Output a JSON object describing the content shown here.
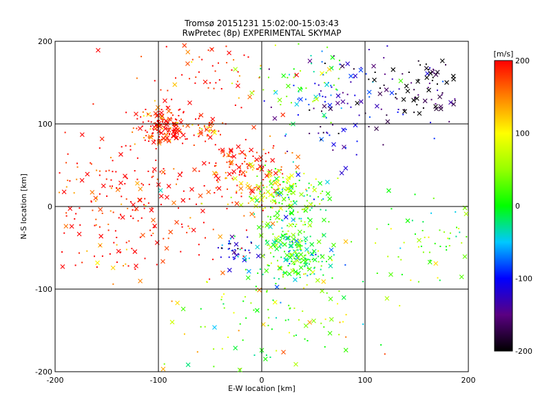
{
  "chart_data": {
    "type": "scatter",
    "title": "Tromsø 20151231 15:02:00-15:03:43",
    "subtitle": "RwPretec (8p) EXPERIMENTAL SKYMAP",
    "xlabel": "E-W location [km]",
    "ylabel": "N-S location [km]",
    "xlim": [
      -200,
      200
    ],
    "ylim": [
      -200,
      200
    ],
    "xticks": [
      "-200",
      "-100",
      "0",
      "100",
      "200"
    ],
    "yticks": [
      "-200",
      "-100",
      "0",
      "100",
      "200"
    ],
    "grid": "at ±100 and 0",
    "colorbar": {
      "label": "[m/s]",
      "ticks": [
        "200",
        "100",
        "0",
        "-100",
        "-200"
      ],
      "range": [
        -200,
        200
      ],
      "colormap": "black-purple-blue-cyan-green-yellow-orange-red"
    },
    "markers": [
      "x (large)",
      "dot/plus (small)"
    ],
    "clusters": [
      {
        "region": "north-west",
        "x": -95,
        "y": 98,
        "spread": 12,
        "velocity": 200,
        "count": 170
      },
      {
        "region": "north-west edge",
        "x": -55,
        "y": 95,
        "spread": 8,
        "velocity": 170,
        "count": 40
      },
      {
        "region": "centre-north",
        "x": -20,
        "y": 45,
        "spread": 20,
        "velocity": 190,
        "count": 130
      },
      {
        "region": "centre",
        "x": 10,
        "y": 20,
        "spread": 15,
        "velocity": 80,
        "count": 90
      },
      {
        "region": "centre-east",
        "x": 30,
        "y": 5,
        "spread": 18,
        "velocity": 10,
        "count": 120
      },
      {
        "region": "south-centre",
        "x": 25,
        "y": -50,
        "spread": 20,
        "velocity": 0,
        "count": 150
      },
      {
        "region": "south-east",
        "x": 40,
        "y": -65,
        "spread": 10,
        "velocity": 10,
        "count": 60
      },
      {
        "region": "south-west",
        "x": -25,
        "y": -50,
        "spread": 10,
        "velocity": -120,
        "count": 40
      },
      {
        "region": "north-east",
        "x": 80,
        "y": 120,
        "spread": 30,
        "velocity": -130,
        "count": 110
      },
      {
        "region": "far north-east",
        "x": 160,
        "y": 145,
        "spread": 20,
        "velocity": -190,
        "count": 70
      },
      {
        "region": "upper-middle",
        "x": 45,
        "y": 150,
        "spread": 25,
        "velocity": 10,
        "count": 60
      },
      {
        "region": "east",
        "x": 160,
        "y": -40,
        "spread": 25,
        "velocity": 20,
        "count": 60
      },
      {
        "region": "west",
        "x": -130,
        "y": 0,
        "spread": 50,
        "velocity": 200,
        "count": 260
      },
      {
        "region": "south",
        "x": 20,
        "y": -140,
        "spread": 50,
        "velocity": 40,
        "count": 140
      },
      {
        "region": "north",
        "x": -50,
        "y": 170,
        "spread": 30,
        "velocity": 190,
        "count": 70
      }
    ]
  }
}
